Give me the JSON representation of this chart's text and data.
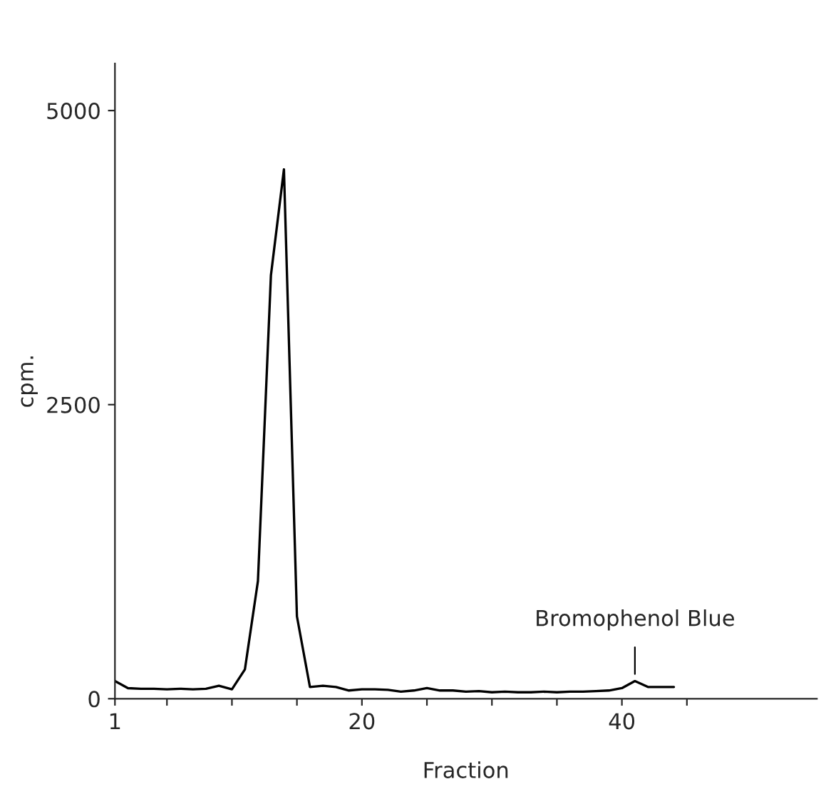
{
  "chart_data": {
    "type": "line",
    "xlabel": "Fraction",
    "ylabel": "cpm.",
    "x": [
      1,
      2,
      3,
      4,
      5,
      6,
      7,
      8,
      9,
      10,
      11,
      12,
      13,
      14,
      15,
      16,
      17,
      18,
      19,
      20,
      21,
      22,
      23,
      24,
      25,
      26,
      27,
      28,
      29,
      30,
      31,
      32,
      33,
      34,
      35,
      36,
      37,
      38,
      39,
      40,
      41,
      42,
      43,
      44
    ],
    "series": [
      {
        "color": "#000000",
        "values": [
          150,
          90,
          85,
          85,
          80,
          85,
          80,
          85,
          110,
          80,
          250,
          1000,
          3600,
          4500,
          700,
          100,
          110,
          100,
          70,
          80,
          80,
          75,
          60,
          70,
          90,
          70,
          70,
          60,
          65,
          55,
          60,
          55,
          55,
          60,
          55,
          60,
          60,
          65,
          70,
          90,
          150,
          100,
          100,
          100
        ]
      }
    ],
    "xlim": [
      1,
      55
    ],
    "xticks": [
      1,
      {
        "value": 5,
        "label": null
      },
      {
        "value": 10,
        "label": null
      },
      {
        "value": 15,
        "label": null
      },
      20,
      {
        "value": 25,
        "label": null
      },
      {
        "value": 30,
        "label": null
      },
      {
        "value": 35,
        "label": null
      },
      40,
      {
        "value": 45,
        "label": null
      }
    ],
    "ylim": [
      0,
      5400
    ],
    "yticks": [
      0,
      2500,
      5000
    ],
    "annotations": [
      {
        "text": "Bromophenol Blue",
        "x": 41,
        "y": 150
      }
    ],
    "grid": false,
    "legend": false
  }
}
